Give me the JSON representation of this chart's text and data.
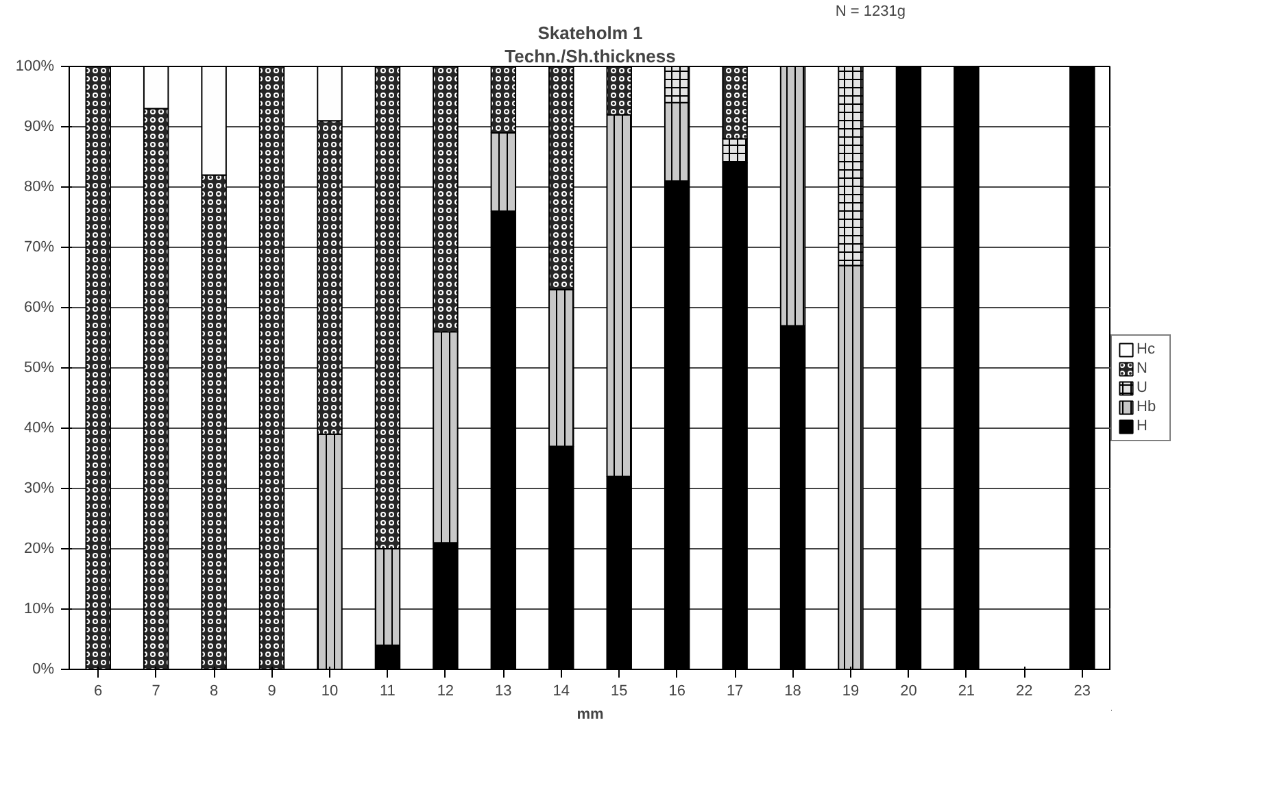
{
  "chart_data": {
    "type": "bar",
    "title": "Skateholm 1",
    "subtitle": "Techn./Sh.thickness",
    "xlabel": "mm",
    "annotations": [
      "N = 1231g"
    ],
    "categories": [
      "6",
      "7",
      "8",
      "9",
      "10",
      "11",
      "12",
      "13",
      "14",
      "15",
      "16",
      "17",
      "18",
      "19",
      "20",
      "21",
      "22",
      "23"
    ],
    "stacked": true,
    "ylim": [
      0,
      100
    ],
    "yticks": [
      {
        "value": 0,
        "label": "0%"
      },
      {
        "value": 10,
        "label": "10%"
      },
      {
        "value": 20,
        "label": "20%"
      },
      {
        "value": 30,
        "label": "30%"
      },
      {
        "value": 40,
        "label": "40%"
      },
      {
        "value": 50,
        "label": "50%"
      },
      {
        "value": 60,
        "label": "60%"
      },
      {
        "value": 70,
        "label": "70%"
      },
      {
        "value": 80,
        "label": "80%"
      },
      {
        "value": 90,
        "label": "90%"
      },
      {
        "value": 100,
        "label": "100%"
      }
    ],
    "grid": "y",
    "legend": "right",
    "series": [
      {
        "name": "H",
        "color": "#000000",
        "values": [
          null,
          null,
          null,
          null,
          null,
          4,
          21,
          76,
          37,
          32,
          81,
          84,
          57,
          null,
          100,
          100,
          null,
          100
        ]
      },
      {
        "name": "Hb",
        "color": "#c8c8c8",
        "values": [
          null,
          null,
          null,
          null,
          39,
          16,
          35,
          13,
          26,
          60,
          13,
          null,
          43,
          67,
          null,
          null,
          null,
          null
        ]
      },
      {
        "name": "U",
        "color": "#e4e4e4",
        "values": [
          null,
          null,
          null,
          null,
          null,
          null,
          null,
          null,
          null,
          null,
          6,
          4,
          null,
          33,
          null,
          null,
          null,
          null
        ]
      },
      {
        "name": "N",
        "color": "#262626",
        "values": [
          100,
          93,
          82,
          100,
          52,
          80,
          44,
          11,
          37,
          8,
          null,
          12,
          null,
          null,
          null,
          null,
          null,
          null
        ]
      },
      {
        "name": "Hc",
        "color": "#fefefe",
        "values": [
          null,
          7,
          18,
          null,
          9,
          null,
          null,
          null,
          null,
          null,
          null,
          null,
          null,
          null,
          null,
          null,
          null,
          null
        ]
      }
    ]
  }
}
